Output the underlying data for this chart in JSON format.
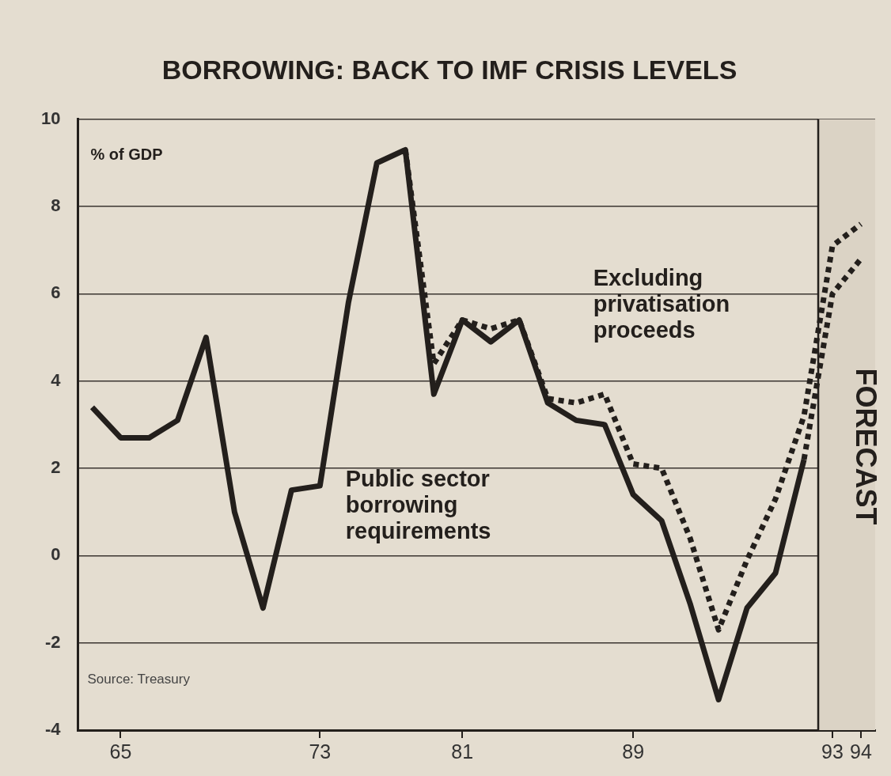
{
  "chart_data": {
    "type": "line",
    "title": "BORROWING: BACK TO IMF CRISIS LEVELS",
    "ylabel": "% of GDP",
    "categories": [
      null,
      "65",
      null,
      null,
      null,
      null,
      null,
      null,
      "73",
      null,
      null,
      null,
      null,
      "81",
      null,
      null,
      null,
      null,
      null,
      "89",
      null,
      null,
      null,
      null,
      null,
      null,
      "93",
      "94"
    ],
    "series": [
      {
        "name": "Public sector borrowing requirements",
        "color": "#231f1c",
        "line_style": "solid",
        "values": [
          3.4,
          2.7,
          2.7,
          3.1,
          5.0,
          1.0,
          -1.2,
          1.5,
          1.6,
          5.8,
          9.0,
          9.3,
          3.7,
          5.4,
          4.9,
          5.4,
          3.5,
          3.1,
          3.0,
          1.4,
          0.8,
          -1.1,
          -3.3,
          -1.2,
          -0.4,
          2.2,
          null,
          null
        ]
      },
      {
        "name": "Excluding privatisation proceeds",
        "color": "#231f1c",
        "line_style": "dotted",
        "values": [
          null,
          null,
          null,
          null,
          null,
          null,
          null,
          null,
          null,
          null,
          null,
          9.3,
          4.4,
          5.4,
          5.2,
          5.4,
          3.6,
          3.5,
          3.7,
          2.1,
          2.0,
          0.4,
          -1.7,
          -0.1,
          1.3,
          3.2,
          7.1,
          7.6
        ]
      },
      {
        "color": "#231f1c",
        "line_style": "dotted",
        "values": [
          null,
          null,
          null,
          null,
          null,
          null,
          null,
          null,
          null,
          null,
          null,
          null,
          null,
          null,
          null,
          null,
          null,
          null,
          null,
          null,
          null,
          null,
          null,
          null,
          null,
          2.2,
          6.0,
          6.8
        ]
      }
    ],
    "ylim": [
      -4,
      10
    ],
    "yticks": [
      -4,
      -2,
      0,
      2,
      4,
      6,
      8,
      10
    ],
    "grid": "y",
    "legend": false,
    "marker": "none",
    "bands": [
      {
        "axis": "x",
        "from": "93",
        "to": "94",
        "label": "FORECAST",
        "color": "#dbd3c5"
      }
    ],
    "annotations": [
      "Source: Treasury"
    ]
  }
}
